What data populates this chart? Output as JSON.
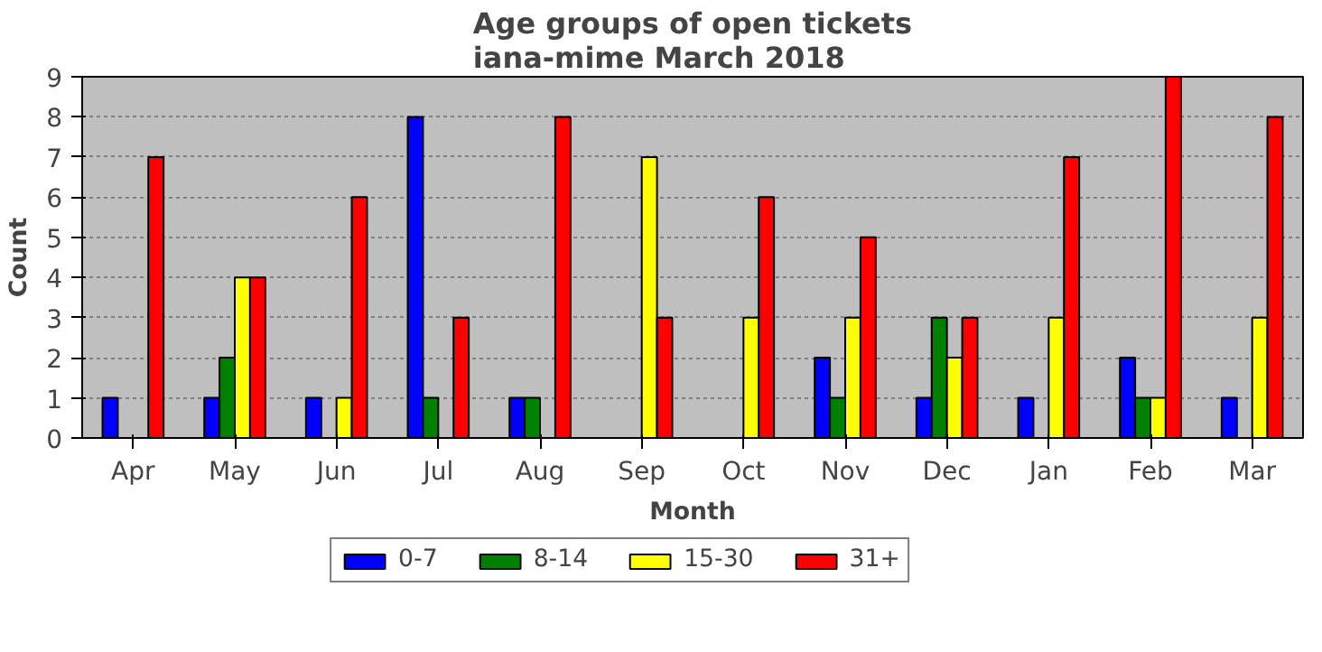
{
  "chart_data": {
    "type": "bar",
    "title": "Age groups of open tickets\niana-mime March 2018",
    "xlabel": "Month",
    "ylabel": "Count",
    "categories": [
      "Apr",
      "May",
      "Jun",
      "Jul",
      "Aug",
      "Sep",
      "Oct",
      "Nov",
      "Dec",
      "Jan",
      "Feb",
      "Mar"
    ],
    "series": [
      {
        "name": "0-7",
        "color": "#0000ff",
        "values": [
          1,
          1,
          1,
          8,
          1,
          0,
          0,
          2,
          1,
          1,
          2,
          1
        ]
      },
      {
        "name": "8-14",
        "color": "#008000",
        "values": [
          0,
          2,
          0,
          1,
          1,
          0,
          0,
          1,
          3,
          0,
          1,
          0
        ]
      },
      {
        "name": "15-30",
        "color": "#ffff00",
        "values": [
          0,
          4,
          1,
          0,
          0,
          7,
          3,
          3,
          2,
          3,
          1,
          3
        ]
      },
      {
        "name": "31+",
        "color": "#ff0000",
        "values": [
          7,
          4,
          6,
          3,
          8,
          3,
          6,
          5,
          3,
          7,
          9,
          8
        ]
      }
    ],
    "ylim": [
      0,
      9
    ],
    "yticks": [
      0,
      1,
      2,
      3,
      4,
      5,
      6,
      7,
      8,
      9
    ],
    "grid": "y",
    "legend": "bottom"
  }
}
